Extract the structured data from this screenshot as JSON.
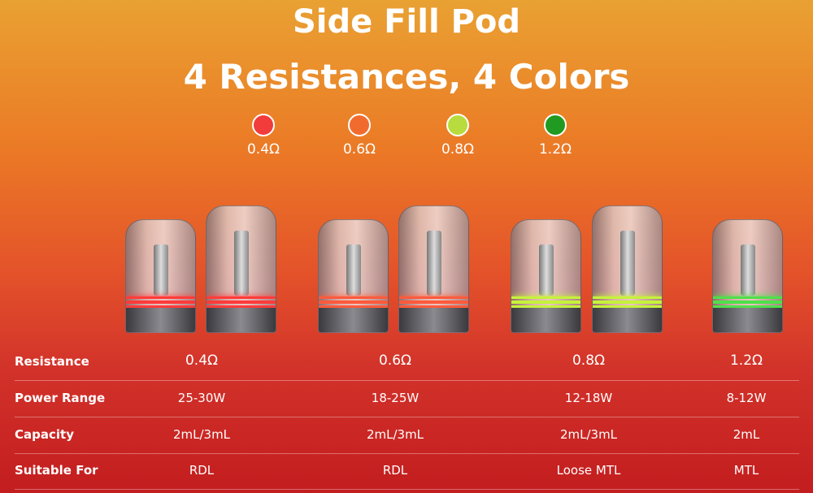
{
  "title": "Side Fill Pod",
  "subtitle": "4 Resistances, 4 Colors",
  "colors": [
    {
      "label": "0.4Ω",
      "color": "#f23b3b"
    },
    {
      "label": "0.6Ω",
      "color": "#f26b2e"
    },
    {
      "label": "0.8Ω",
      "color": "#b8dc3e"
    },
    {
      "label": "1.2Ω",
      "color": "#219a22"
    }
  ],
  "pods": [
    {
      "band": "#ff3b3b"
    },
    {
      "band": "#ff3b3b"
    },
    {
      "band": "#ff5a3c"
    },
    {
      "band": "#ff5a3c"
    },
    {
      "band": "#c6f23a"
    },
    {
      "band": "#c6f23a"
    },
    {
      "band": "#4fe04a"
    }
  ],
  "table": {
    "rows": [
      {
        "label": "Resistance",
        "values": [
          "0.4Ω",
          "0.6Ω",
          "0.8Ω",
          "1.2Ω"
        ]
      },
      {
        "label": "Power Range",
        "values": [
          "25-30W",
          "18-25W",
          "12-18W",
          "8-12W"
        ]
      },
      {
        "label": "Capacity",
        "values": [
          "2mL/3mL",
          "2mL/3mL",
          "2mL/3mL",
          "2mL"
        ]
      },
      {
        "label": "Suitable For",
        "values": [
          "RDL",
          "RDL",
          "Loose MTL",
          "MTL"
        ]
      }
    ]
  }
}
